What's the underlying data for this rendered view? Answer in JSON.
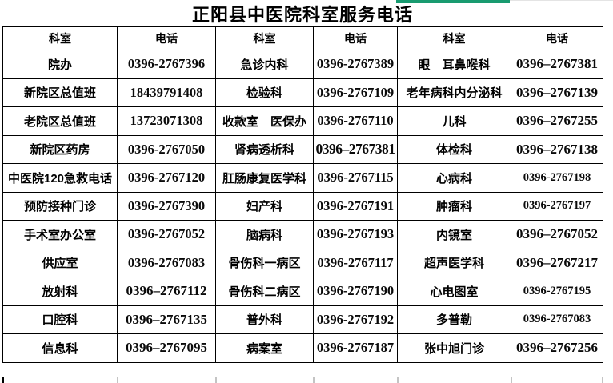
{
  "title": "正阳县中医院科室服务电话",
  "accent": {
    "green_bar": "#189b70",
    "grid_border": "#000000",
    "sheet_gridline": "#dcdcdc",
    "text_color": "#000000"
  },
  "table": {
    "headers": [
      "科室",
      "电话",
      "科室",
      "电话",
      "科室",
      "电话"
    ],
    "rows": [
      {
        "cells": [
          {
            "t": "院办"
          },
          {
            "t": "0396-2767396"
          },
          {
            "t": "急诊内科"
          },
          {
            "t": "0396-2767389"
          },
          {
            "t": "眼　耳鼻喉科"
          },
          {
            "t": "0396–2767381",
            "f": "wide"
          }
        ]
      },
      {
        "cells": [
          {
            "t": "新院区总值班"
          },
          {
            "t": "18439791408"
          },
          {
            "t": "检验科"
          },
          {
            "t": "0396-2767109"
          },
          {
            "t": "老年病科内分泌科"
          },
          {
            "t": "0396–2767139",
            "f": "wide"
          }
        ]
      },
      {
        "cells": [
          {
            "t": "老院区总值班"
          },
          {
            "t": "13723071308"
          },
          {
            "t": "收款室　医保办"
          },
          {
            "t": "0396-2767110"
          },
          {
            "t": "儿科"
          },
          {
            "t": "0396–2767255",
            "f": "wide"
          }
        ]
      },
      {
        "cells": [
          {
            "t": "新院区药房"
          },
          {
            "t": "0396-2767050"
          },
          {
            "t": "肾病透析科"
          },
          {
            "t": "0396–2767381",
            "f": "ov"
          },
          {
            "t": "体检科"
          },
          {
            "t": "0396–2767138",
            "f": "wide"
          }
        ]
      },
      {
        "cells": [
          {
            "t": "中医院120急救电话"
          },
          {
            "t": "0396-2767120"
          },
          {
            "t": "肛肠康复医学科"
          },
          {
            "t": "0396-2767115"
          },
          {
            "t": "心病科"
          },
          {
            "t": "0396-2767198",
            "f": "sm"
          }
        ]
      },
      {
        "cells": [
          {
            "t": "预防接种门诊"
          },
          {
            "t": "0396-2767390"
          },
          {
            "t": "妇产科"
          },
          {
            "t": "0396-2767191"
          },
          {
            "t": "肿瘤科"
          },
          {
            "t": "0396-2767197",
            "f": "sm"
          }
        ]
      },
      {
        "cells": [
          {
            "t": "手术室办公室"
          },
          {
            "t": "0396-2767052"
          },
          {
            "t": "脑病科"
          },
          {
            "t": "0396-2767193"
          },
          {
            "t": "内镜室"
          },
          {
            "t": "0396–2767052",
            "f": "wide"
          }
        ]
      },
      {
        "cells": [
          {
            "t": "供应室"
          },
          {
            "t": "0396-2767083"
          },
          {
            "t": "骨伤科一病区"
          },
          {
            "t": "0396-2767117"
          },
          {
            "t": "超声医学科"
          },
          {
            "t": "0396–2767217",
            "f": "wide"
          }
        ]
      },
      {
        "cells": [
          {
            "t": "放射科"
          },
          {
            "t": "0396–2767112",
            "f": "wide"
          },
          {
            "t": "骨伤科二病区"
          },
          {
            "t": "0396-2767190"
          },
          {
            "t": "心电图室"
          },
          {
            "t": "0396-2767195",
            "f": "sm"
          }
        ]
      },
      {
        "cells": [
          {
            "t": "口腔科"
          },
          {
            "t": "0396–2767135",
            "f": "wide"
          },
          {
            "t": "普外科"
          },
          {
            "t": "0396-2767192"
          },
          {
            "t": "多普勒"
          },
          {
            "t": "0396-2767083",
            "f": "sm"
          }
        ]
      },
      {
        "cells": [
          {
            "t": "信息科"
          },
          {
            "t": "0396–2767095",
            "f": "wide"
          },
          {
            "t": "病案室"
          },
          {
            "t": "0396-2767187"
          },
          {
            "t": "张中旭门诊"
          },
          {
            "t": "0396–2767256",
            "f": "wide"
          }
        ]
      }
    ]
  }
}
